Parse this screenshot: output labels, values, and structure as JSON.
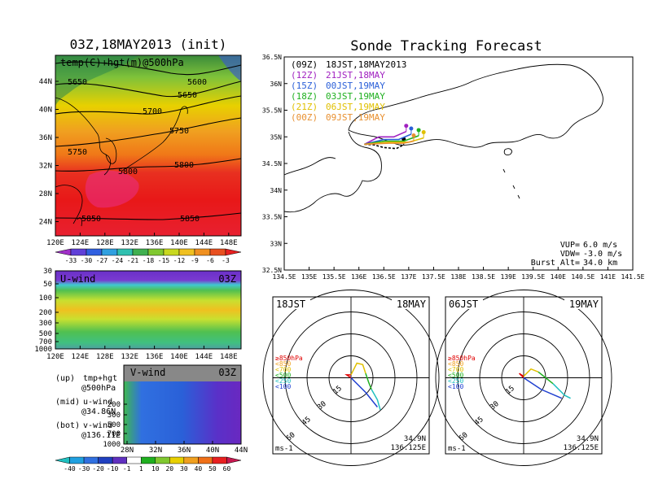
{
  "left_title": "03Z,18MAY2013 (init)",
  "right_title": "Sonde Tracking Forecast",
  "top_map": {
    "label": "temp(C)+hgt(m)@500hPa",
    "x_ticks": [
      "120E",
      "124E",
      "128E",
      "132E",
      "136E",
      "140E",
      "144E",
      "148E"
    ],
    "y_ticks": [
      "44N",
      "40N",
      "36N",
      "32N",
      "28N",
      "24N"
    ],
    "contour_labels": [
      "5650",
      "5600",
      "5650",
      "5700",
      "5750",
      "5750",
      "5800",
      "5800",
      "5850",
      "5850"
    ],
    "colorbar_labels": [
      "-33",
      "-30",
      "-27",
      "-24",
      "-21",
      "-18",
      "-15",
      "-12",
      "-9",
      "-6",
      "-3"
    ]
  },
  "uwind": {
    "label": "U-wind",
    "time": "03Z",
    "y_ticks": [
      "30",
      "50",
      "100",
      "200",
      "300",
      "500",
      "700",
      "1000"
    ],
    "x_ticks": [
      "120E",
      "124E",
      "128E",
      "132E",
      "136E",
      "140E",
      "144E",
      "148E"
    ]
  },
  "vwind": {
    "label": "V-wind",
    "time": "03Z",
    "y_ticks": [
      "200",
      "300",
      "500",
      "700",
      "1000"
    ],
    "x_ticks": [
      "28N",
      "32N",
      "36N",
      "40N",
      "44N"
    ]
  },
  "legend_notes": [
    {
      "key": "(up)",
      "text": "tmp+hgt",
      "sub": "@500hPa"
    },
    {
      "key": "(mid)",
      "text": "u-wind",
      "sub": "@34.86N"
    },
    {
      "key": "(bot)",
      "text": "v-wind",
      "sub": "@136.11E"
    }
  ],
  "wind_colorbar_labels": [
    "-40",
    "-30",
    "-20",
    "-10",
    "-1",
    "1",
    "10",
    "20",
    "30",
    "40",
    "50",
    "60"
  ],
  "track_map": {
    "x_ticks": [
      "134.5E",
      "135E",
      "135.5E",
      "136E",
      "136.5E",
      "137E",
      "137.5E",
      "138E",
      "138.5E",
      "139E",
      "139.5E",
      "140E",
      "140.5E",
      "141E",
      "141.5E"
    ],
    "y_ticks": [
      "36.5N",
      "36N",
      "35.5N",
      "35N",
      "34.5N",
      "34N",
      "33.5N",
      "33N",
      "32.5N"
    ],
    "legend": [
      {
        "code": "(09Z)",
        "time": "18JST,18MAY2013",
        "color": "#000000"
      },
      {
        "code": "(12Z)",
        "time": "21JST,18MAY",
        "color": "#a020c0"
      },
      {
        "code": "(15Z)",
        "time": "00JST,19MAY",
        "color": "#2a5fd8"
      },
      {
        "code": "(18Z)",
        "time": "03JST,19MAY",
        "color": "#20b020"
      },
      {
        "code": "(21Z)",
        "time": "06JST,19MAY",
        "color": "#e0c000"
      },
      {
        "code": "(00Z)",
        "time": "09JST,19MAY",
        "color": "#e89030"
      }
    ],
    "params": [
      {
        "label": "VUP=",
        "value": "6.0 m/s"
      },
      {
        "label": "VDW=",
        "value": "-3.0 m/s"
      },
      {
        "label": "Burst Alt=",
        "value": "34.0 km"
      }
    ]
  },
  "hodographs": [
    {
      "time": "18JST",
      "date": "18MAY",
      "lat": "34.9N",
      "lon": "136.125E",
      "unit": "ms-1",
      "ring_labels": [
        "15",
        "30",
        "45",
        "60"
      ]
    },
    {
      "time": "06JST",
      "date": "19MAY",
      "lat": "34.9N",
      "lon": "136.125E",
      "unit": "ms-1",
      "ring_labels": [
        "15",
        "30",
        "45",
        "60"
      ]
    }
  ],
  "hodo_levels": [
    {
      "label": "≥850hPa",
      "color": "#e00000"
    },
    {
      "label": "<850",
      "color": "#f0a020"
    },
    {
      "label": "<700",
      "color": "#e0c000"
    },
    {
      "label": "<500",
      "color": "#20b020"
    },
    {
      "label": "<250",
      "color": "#20c0c0"
    },
    {
      "label": "<100",
      "color": "#2040d0"
    }
  ],
  "chart_data": [
    {
      "type": "heatmap",
      "title": "temp(C)+hgt(m)@500hPa",
      "xlim": [
        120,
        150
      ],
      "ylim": [
        22,
        47
      ],
      "contours": [
        {
          "level": 5600,
          "label": "5600"
        },
        {
          "level": 5650,
          "label": "5650"
        },
        {
          "level": 5700,
          "label": "5700"
        },
        {
          "level": 5750,
          "label": "5750"
        },
        {
          "level": 5800,
          "label": "5800"
        },
        {
          "level": 5850,
          "label": "5850"
        }
      ],
      "colorbar": [
        -33,
        -30,
        -27,
        -24,
        -21,
        -18,
        -15,
        -12,
        -9,
        -6,
        -3
      ]
    },
    {
      "type": "line",
      "title": "Sonde Tracking Forecast",
      "xlim": [
        134.5,
        141.5
      ],
      "ylim": [
        32.5,
        36.5
      ],
      "series": [
        {
          "name": "(09Z) 18JST,18MAY2013",
          "x": [
            136.11,
            136.3,
            136.5,
            136.75,
            136.9
          ],
          "y": [
            34.86,
            34.85,
            34.8,
            34.78,
            34.85
          ]
        },
        {
          "name": "(12Z) 21JST,18MAY",
          "x": [
            136.11,
            136.4,
            136.7,
            136.95
          ],
          "y": [
            34.86,
            35.0,
            35.0,
            35.1
          ]
        },
        {
          "name": "(15Z) 00JST,19MAY",
          "x": [
            136.11,
            136.5,
            136.8,
            137.05
          ],
          "y": [
            34.86,
            34.95,
            34.95,
            35.05
          ]
        },
        {
          "name": "(18Z) 03JST,19MAY",
          "x": [
            136.11,
            136.5,
            136.9,
            137.2
          ],
          "y": [
            34.86,
            34.92,
            34.92,
            35.02
          ]
        },
        {
          "name": "(21Z) 06JST,19MAY",
          "x": [
            136.11,
            136.6,
            137.0,
            137.3
          ],
          "y": [
            34.86,
            34.9,
            34.9,
            34.98
          ]
        },
        {
          "name": "(00Z) 09JST,19MAY",
          "x": [
            136.11,
            136.6,
            136.9,
            137.1
          ],
          "y": [
            34.86,
            34.88,
            34.88,
            34.92
          ]
        }
      ]
    },
    {
      "type": "line",
      "title": "hodograph 18JST 18MAY",
      "series": [
        {
          "name": "≥850hPa",
          "u": [
            0,
            -3,
            0
          ],
          "v": [
            0,
            2,
            2
          ]
        },
        {
          "name": "<700",
          "u": [
            0,
            4,
            8,
            10
          ],
          "v": [
            2,
            10,
            9,
            3
          ]
        },
        {
          "name": "<500",
          "u": [
            10,
            12,
            14
          ],
          "v": [
            3,
            -3,
            -8
          ]
        },
        {
          "name": "<250",
          "u": [
            14,
            18,
            20
          ],
          "v": [
            -8,
            -15,
            -22
          ]
        },
        {
          "name": "<100",
          "u": [
            0,
            10,
            18
          ],
          "v": [
            0,
            -10,
            -20
          ]
        }
      ]
    },
    {
      "type": "line",
      "title": "hodograph 06JST 19MAY",
      "series": [
        {
          "name": "≥850hPa",
          "u": [
            0,
            -3,
            0
          ],
          "v": [
            0,
            3,
            1
          ]
        },
        {
          "name": "<700",
          "u": [
            0,
            5,
            10
          ],
          "v": [
            1,
            6,
            4
          ]
        },
        {
          "name": "<500",
          "u": [
            10,
            15,
            20
          ],
          "v": [
            4,
            0,
            -4
          ]
        },
        {
          "name": "<250",
          "u": [
            20,
            28,
            32
          ],
          "v": [
            -4,
            -12,
            -14
          ]
        },
        {
          "name": "<100",
          "u": [
            0,
            12,
            26
          ],
          "v": [
            0,
            -8,
            -14
          ]
        }
      ]
    }
  ]
}
